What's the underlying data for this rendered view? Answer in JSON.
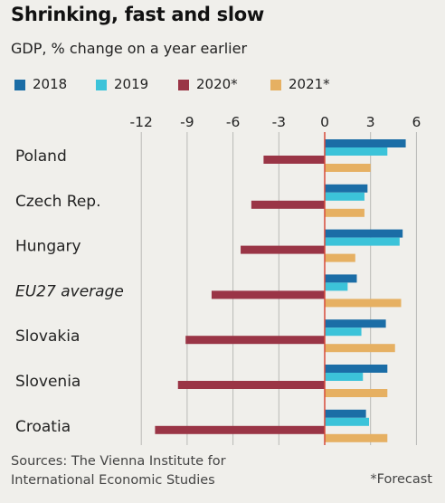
{
  "header": {
    "title": "Shrinking, fast and slow",
    "subtitle": "GDP, % change on a year earlier"
  },
  "footer": {
    "source_line1": "Sources: The Vienna Institute for",
    "source_line2": "International Economic Studies",
    "note": "*Forecast"
  },
  "colors": {
    "background": "#f0efeb",
    "grid": "#b9b9b6",
    "zero_line": "#d64a3a"
  },
  "chart_data": {
    "type": "bar",
    "orientation": "horizontal",
    "title": "Shrinking, fast and slow",
    "subtitle": "GDP, % change on a year earlier",
    "xlim": [
      -13,
      6
    ],
    "x_ticks": [
      -12,
      -9,
      -6,
      -3,
      0,
      3,
      6
    ],
    "x_tick_labels": [
      "-12",
      "-9",
      "-6",
      "-3",
      "0",
      "3",
      "6"
    ],
    "axis_position": "top",
    "grid": true,
    "legend_placement": "top",
    "categories": [
      "Poland",
      "Czech Rep.",
      "Hungary",
      "EU27 average",
      "Slovakia",
      "Slovenia",
      "Croatia"
    ],
    "italic_categories": [
      "EU27 average"
    ],
    "series": [
      {
        "name": "2018",
        "color": "#1b6da6",
        "values": [
          5.3,
          2.8,
          5.1,
          2.1,
          4.0,
          4.1,
          2.7
        ]
      },
      {
        "name": "2019",
        "color": "#3cc3d9",
        "values": [
          4.1,
          2.6,
          4.9,
          1.5,
          2.4,
          2.5,
          2.9
        ]
      },
      {
        "name": "2020*",
        "color": "#9a3546",
        "values": [
          -4.0,
          -4.8,
          -5.5,
          -7.4,
          -9.1,
          -9.6,
          -11.1
        ]
      },
      {
        "name": "2021*",
        "color": "#e6b062",
        "values": [
          3.0,
          2.6,
          2.0,
          5.0,
          4.6,
          4.1,
          4.1
        ]
      }
    ]
  }
}
